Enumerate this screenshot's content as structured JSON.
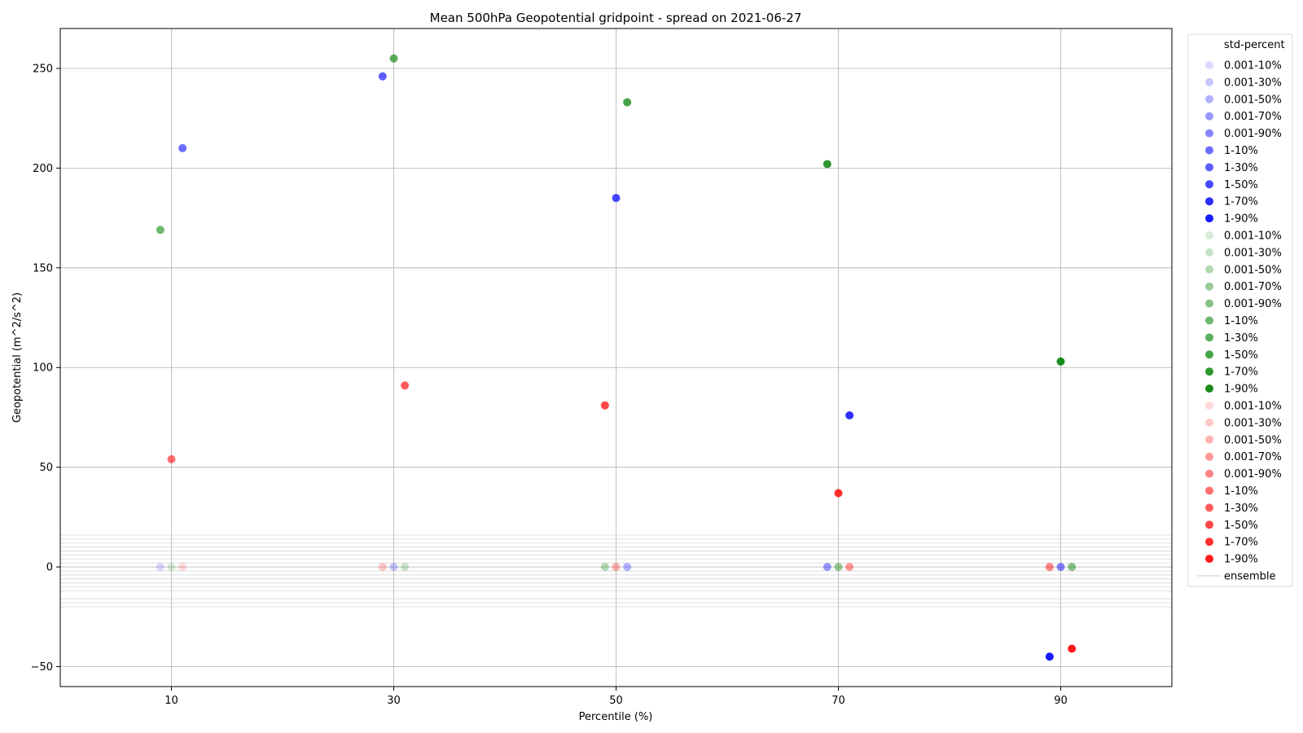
{
  "chart_data": {
    "type": "scatter",
    "title": "Mean 500hPa Geopotential gridpoint - spread on 2021-06-27",
    "xlabel": "Percentile (%)",
    "ylabel": "Geopotential (m^2/s^2)",
    "xlim": [
      0,
      100
    ],
    "ylim": [
      -60,
      270
    ],
    "xticks": [
      10,
      30,
      50,
      70,
      90
    ],
    "yticks": [
      -50,
      0,
      50,
      100,
      150,
      200,
      250
    ],
    "ytick_labels": [
      "−50",
      "0",
      "50",
      "100",
      "150",
      "200",
      "250"
    ],
    "grid": true,
    "legend_title": "std-percent",
    "legend_position": "outside right",
    "colors": {
      "blue": "#0000ff",
      "green": "#008000",
      "red": "#ff0000",
      "ensemble": "#cccccc"
    },
    "series": [
      {
        "name": "0.001-10%",
        "group": "blue",
        "alpha": 0.15,
        "points": [
          [
            9,
            0
          ]
        ]
      },
      {
        "name": "0.001-30%",
        "group": "blue",
        "alpha": 0.22,
        "points": [
          [
            30,
            0
          ]
        ]
      },
      {
        "name": "0.001-50%",
        "group": "blue",
        "alpha": 0.3,
        "points": [
          [
            51,
            0
          ]
        ]
      },
      {
        "name": "0.001-70%",
        "group": "blue",
        "alpha": 0.4,
        "points": [
          [
            69,
            0
          ]
        ]
      },
      {
        "name": "0.001-90%",
        "group": "blue",
        "alpha": 0.48,
        "points": [
          [
            90,
            0
          ]
        ]
      },
      {
        "name": "1-10%",
        "group": "blue",
        "alpha": 0.57,
        "points": [
          [
            11,
            210
          ]
        ]
      },
      {
        "name": "1-30%",
        "group": "blue",
        "alpha": 0.64,
        "points": [
          [
            29,
            246
          ]
        ]
      },
      {
        "name": "1-50%",
        "group": "blue",
        "alpha": 0.72,
        "points": [
          [
            50,
            185
          ]
        ]
      },
      {
        "name": "1-70%",
        "group": "blue",
        "alpha": 0.82,
        "points": [
          [
            71,
            76
          ]
        ]
      },
      {
        "name": "1-90%",
        "group": "blue",
        "alpha": 0.9,
        "points": [
          [
            89,
            -45
          ]
        ]
      },
      {
        "name": "0.001-10%",
        "group": "green",
        "alpha": 0.15,
        "points": [
          [
            10,
            0
          ]
        ]
      },
      {
        "name": "0.001-30%",
        "group": "green",
        "alpha": 0.22,
        "points": [
          [
            31,
            0
          ]
        ]
      },
      {
        "name": "0.001-50%",
        "group": "green",
        "alpha": 0.3,
        "points": [
          [
            49,
            0
          ]
        ]
      },
      {
        "name": "0.001-70%",
        "group": "green",
        "alpha": 0.4,
        "points": [
          [
            70,
            0
          ]
        ]
      },
      {
        "name": "0.001-90%",
        "group": "green",
        "alpha": 0.48,
        "points": [
          [
            91,
            0
          ]
        ]
      },
      {
        "name": "1-10%",
        "group": "green",
        "alpha": 0.57,
        "points": [
          [
            9,
            169
          ]
        ]
      },
      {
        "name": "1-30%",
        "group": "green",
        "alpha": 0.64,
        "points": [
          [
            30,
            255
          ]
        ]
      },
      {
        "name": "1-50%",
        "group": "green",
        "alpha": 0.72,
        "points": [
          [
            51,
            233
          ]
        ]
      },
      {
        "name": "1-70%",
        "group": "green",
        "alpha": 0.82,
        "points": [
          [
            69,
            202
          ]
        ]
      },
      {
        "name": "1-90%",
        "group": "green",
        "alpha": 0.9,
        "points": [
          [
            90,
            103
          ]
        ]
      },
      {
        "name": "0.001-10%",
        "group": "red",
        "alpha": 0.15,
        "points": [
          [
            11,
            0
          ]
        ]
      },
      {
        "name": "0.001-30%",
        "group": "red",
        "alpha": 0.22,
        "points": [
          [
            29,
            0
          ]
        ]
      },
      {
        "name": "0.001-50%",
        "group": "red",
        "alpha": 0.3,
        "points": [
          [
            50,
            0
          ]
        ]
      },
      {
        "name": "0.001-70%",
        "group": "red",
        "alpha": 0.4,
        "points": [
          [
            71,
            0
          ]
        ]
      },
      {
        "name": "0.001-90%",
        "group": "red",
        "alpha": 0.48,
        "points": [
          [
            89,
            0
          ]
        ]
      },
      {
        "name": "1-10%",
        "group": "red",
        "alpha": 0.57,
        "points": [
          [
            10,
            54
          ]
        ]
      },
      {
        "name": "1-30%",
        "group": "red",
        "alpha": 0.64,
        "points": [
          [
            31,
            91
          ]
        ]
      },
      {
        "name": "1-50%",
        "group": "red",
        "alpha": 0.72,
        "points": [
          [
            49,
            81
          ]
        ]
      },
      {
        "name": "1-70%",
        "group": "red",
        "alpha": 0.82,
        "points": [
          [
            70,
            37
          ]
        ]
      },
      {
        "name": "1-90%",
        "group": "red",
        "alpha": 0.9,
        "points": [
          [
            91,
            -41
          ]
        ]
      }
    ],
    "ensemble": {
      "name": "ensemble",
      "values": [
        -20,
        -18,
        -16,
        -12,
        -10,
        -8,
        -6,
        -4,
        -2,
        2,
        4,
        6,
        8,
        10,
        12,
        14,
        16
      ]
    }
  }
}
